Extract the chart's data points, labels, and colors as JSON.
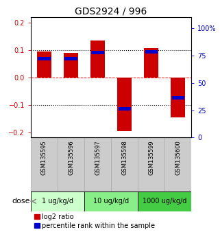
{
  "title": "GDS2924 / 996",
  "samples": [
    "GSM135595",
    "GSM135596",
    "GSM135597",
    "GSM135598",
    "GSM135599",
    "GSM135600"
  ],
  "log2_ratio": [
    0.095,
    0.088,
    0.135,
    -0.195,
    0.108,
    -0.145
  ],
  "percentile_rank_y": [
    0.068,
    0.068,
    0.09,
    -0.115,
    0.092,
    -0.075
  ],
  "bar_color": "#cc0000",
  "marker_color": "#0000cc",
  "ylim": [
    -0.22,
    0.22
  ],
  "y2lim": [
    0,
    110
  ],
  "yticks": [
    -0.2,
    -0.1,
    0.0,
    0.1,
    0.2
  ],
  "y2ticks": [
    0,
    25,
    50,
    75,
    100
  ],
  "y2ticklabels": [
    "0",
    "25",
    "50",
    "75",
    "100%"
  ],
  "hlines_dotted": [
    -0.1,
    0.1
  ],
  "hline_dashed": 0.0,
  "dose_groups": [
    {
      "label": "1 ug/kg/d",
      "cols": [
        0,
        1
      ],
      "color": "#ccffcc"
    },
    {
      "label": "10 ug/kg/d",
      "cols": [
        2,
        3
      ],
      "color": "#88ee88"
    },
    {
      "label": "1000 ug/kg/d",
      "cols": [
        4,
        5
      ],
      "color": "#44cc44"
    }
  ],
  "dose_label": "dose",
  "legend_entries": [
    "log2 ratio",
    "percentile rank within the sample"
  ],
  "bar_width": 0.55,
  "title_fontsize": 10,
  "tick_fontsize": 7,
  "sample_fontsize": 6,
  "dose_fontsize": 7,
  "legend_fontsize": 7,
  "left_tick_color": "#cc0000",
  "right_tick_color": "#0000cc",
  "sample_bg_color": "#cccccc",
  "sample_border_color": "#aaaaaa"
}
